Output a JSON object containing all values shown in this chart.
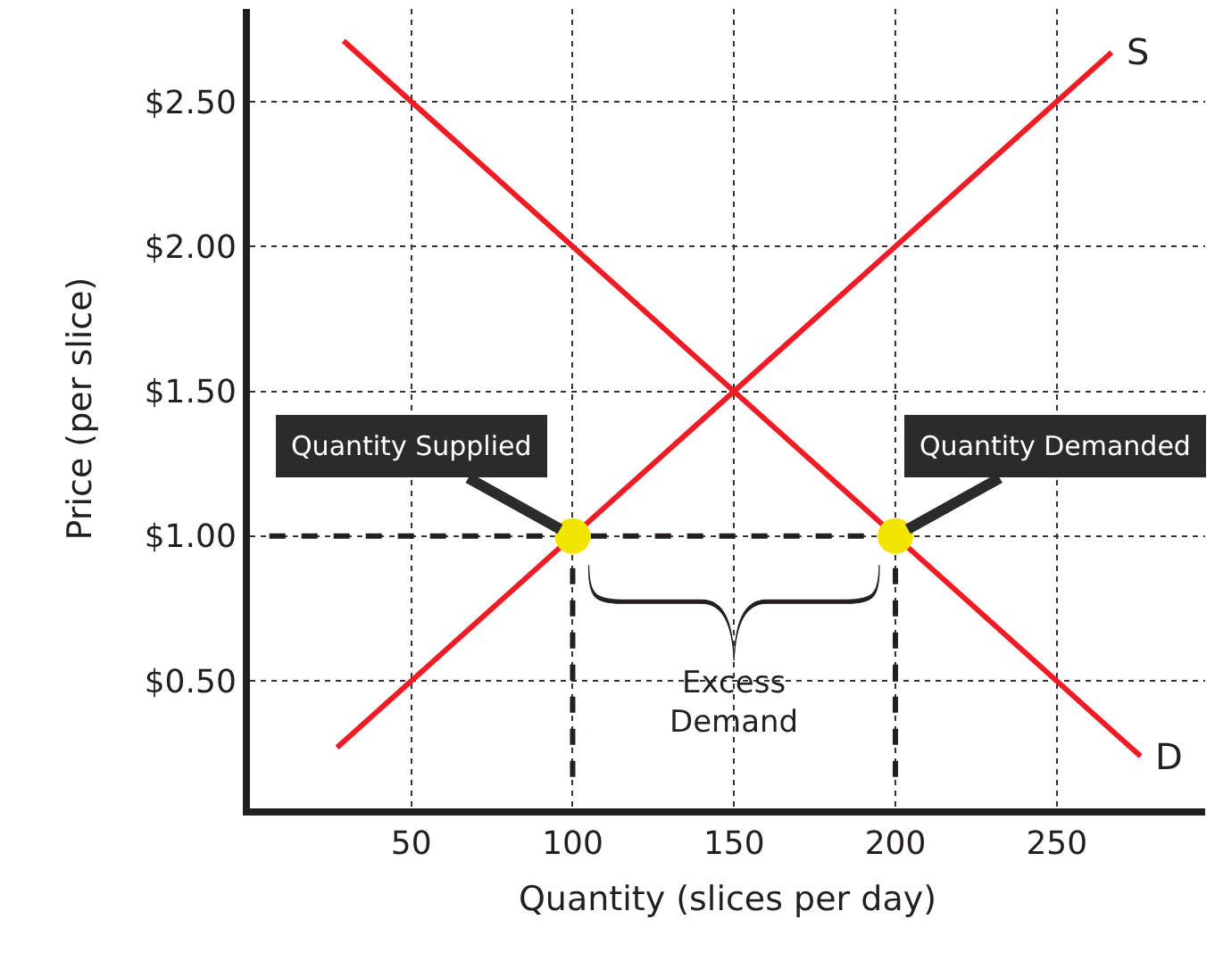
{
  "chart_data": {
    "type": "line",
    "xlabel": "Quantity (slices per day)",
    "ylabel": "Price (per slice)",
    "xlim": [
      0,
      296
    ],
    "ylim": [
      0.06,
      2.82
    ],
    "xticks": [
      50,
      100,
      150,
      200,
      250
    ],
    "yticks": [
      {
        "value": 0.5,
        "label": "$0.50"
      },
      {
        "value": 1.0,
        "label": "$1.00"
      },
      {
        "value": 1.5,
        "label": "$1.50"
      },
      {
        "value": 2.0,
        "label": "$2.00"
      },
      {
        "value": 2.5,
        "label": "$2.50"
      }
    ],
    "grid": true,
    "legend": false,
    "line_style": "solid",
    "marker": "none",
    "series": [
      {
        "name": "S",
        "color": "#ee1c24",
        "x": [
          27,
          267
        ],
        "values": [
          0.27,
          2.67
        ]
      },
      {
        "name": "D",
        "color": "#ee1c24",
        "x": [
          29,
          276
        ],
        "values": [
          2.71,
          0.24
        ]
      },
      {
        "color": "#231f20",
        "line_style": "dashed",
        "x": [
          6,
          200
        ],
        "values": [
          1.0,
          1.0
        ]
      },
      {
        "color": "#231f20",
        "line_style": "dashed",
        "x": [
          100,
          100
        ],
        "values": [
          1.0,
          0.12
        ]
      },
      {
        "color": "#231f20",
        "line_style": "dashed",
        "x": [
          200,
          200
        ],
        "values": [
          1.0,
          0.12
        ]
      },
      {
        "type": "scatter",
        "marker": "circle",
        "color": "#f2e600",
        "x": [
          100,
          200
        ],
        "values": [
          1.0,
          1.0
        ]
      }
    ],
    "annotations": [
      {
        "text": "Quantity Supplied",
        "x": 100,
        "y": 1.0
      },
      {
        "text": "Quantity Demanded",
        "x": 200,
        "y": 1.0
      },
      "Excess\nDemand"
    ]
  }
}
